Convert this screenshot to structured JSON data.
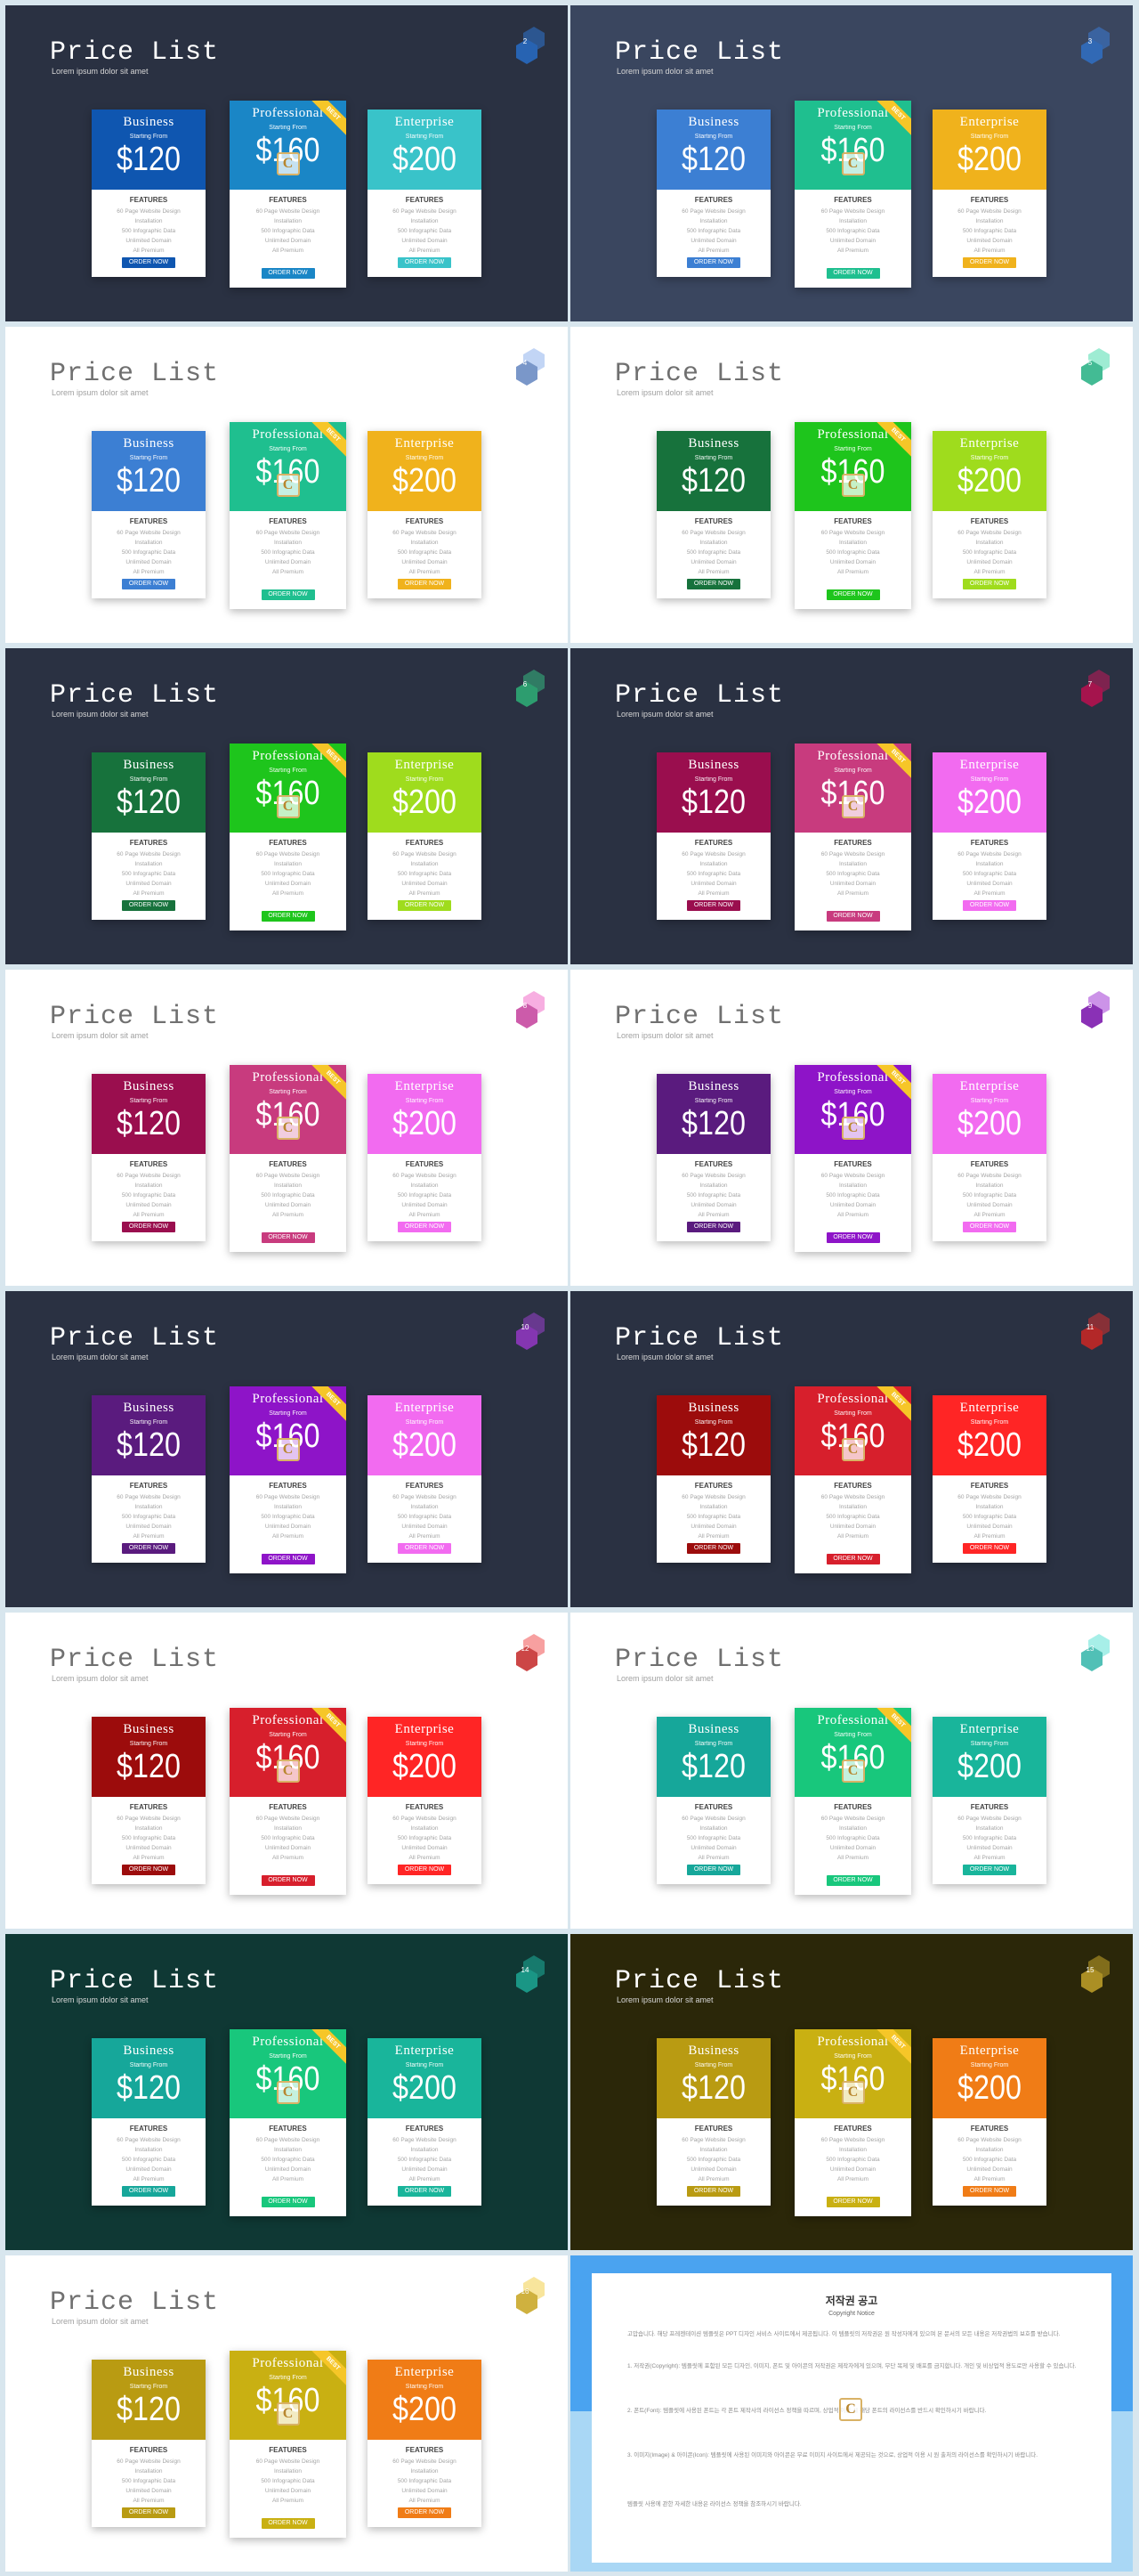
{
  "deck": {
    "title": "Price List",
    "subtitle": "Lorem ipsum dolor sit amet"
  },
  "plans": [
    {
      "name": "Business",
      "price": "$120",
      "ribbon": ""
    },
    {
      "name": "Professional",
      "price": "$160",
      "ribbon": "BEST"
    },
    {
      "name": "Enterprise",
      "price": "$200",
      "ribbon": ""
    }
  ],
  "card_labels": {
    "starting_from": "Starting From",
    "features": "FEATURES",
    "feature_lines": [
      "60 Page Website Design",
      "Installation",
      "500 Infographic Data",
      "Unlimited Domain",
      "All Premium"
    ],
    "order_button": "ORDER NOW"
  },
  "slides": [
    {
      "number": "2",
      "theme": "dark",
      "bg": "#2a3142",
      "badge": "#2e74d1",
      "colors": [
        "#0f56b0",
        "#1a86c6",
        "#39c3c9"
      ]
    },
    {
      "number": "3",
      "theme": "dark",
      "bg": "#3a465f",
      "badge": "#3a7bd5",
      "colors": [
        "#3c7fd3",
        "#1fbf8f",
        "#f0b21c"
      ]
    },
    {
      "number": "4",
      "theme": "light",
      "bg": "#ffffff",
      "badge": "#8fb2ec",
      "colors": [
        "#3c7fd3",
        "#1fbf8f",
        "#f0b21c"
      ]
    },
    {
      "number": "5",
      "theme": "light",
      "bg": "#ffffff",
      "badge": "#4fdcae",
      "colors": [
        "#17723c",
        "#1ec51c",
        "#9fdc1d"
      ]
    },
    {
      "number": "6",
      "theme": "dark",
      "bg": "#2a3142",
      "badge": "#35b982",
      "colors": [
        "#17723c",
        "#1ec51c",
        "#9fdc1d"
      ]
    },
    {
      "number": "7",
      "theme": "dark",
      "bg": "#2a3142",
      "badge": "#c2185b",
      "colors": [
        "#9a0e4e",
        "#c83b7e",
        "#f26bf0"
      ]
    },
    {
      "number": "8",
      "theme": "light",
      "bg": "#ffffff",
      "badge": "#f06bc8",
      "colors": [
        "#9a0e4e",
        "#c83b7e",
        "#f26bf0"
      ]
    },
    {
      "number": "9",
      "theme": "light",
      "bg": "#ffffff",
      "badge": "#a23ad6",
      "colors": [
        "#5a1b7e",
        "#8e14c8",
        "#f26bf0"
      ]
    },
    {
      "number": "10",
      "theme": "dark",
      "bg": "#2a3142",
      "badge": "#9b3fd0",
      "colors": [
        "#5a1b7e",
        "#8e14c8",
        "#f26bf0"
      ]
    },
    {
      "number": "11",
      "theme": "dark",
      "bg": "#2a3142",
      "badge": "#d32f2f",
      "colors": [
        "#9c0c0c",
        "#d71f2c",
        "#ff2525"
      ]
    },
    {
      "number": "12",
      "theme": "light",
      "bg": "#ffffff",
      "badge": "#f05252",
      "colors": [
        "#9c0c0c",
        "#d71f2c",
        "#ff2525"
      ]
    },
    {
      "number": "13",
      "theme": "light",
      "bg": "#ffffff",
      "badge": "#5fe2d6",
      "colors": [
        "#16a79a",
        "#18c77c",
        "#19b59b"
      ]
    },
    {
      "number": "14",
      "theme": "dark",
      "bg": "#0f3834",
      "badge": "#1fb09c",
      "colors": [
        "#16a79a",
        "#18c77c",
        "#19b59b"
      ]
    },
    {
      "number": "15",
      "theme": "dark",
      "bg": "#2b2709",
      "badge": "#c9a82a",
      "colors": [
        "#b99b12",
        "#c9b012",
        "#f07c16"
      ]
    },
    {
      "number": "16",
      "theme": "light",
      "bg": "#ffffff",
      "badge": "#f3d04a",
      "colors": [
        "#b99b12",
        "#c9b012",
        "#f07c16"
      ]
    }
  ],
  "copyright": {
    "title": "저작권 공고",
    "subtitle": "Copyright Notice",
    "paragraphs": [
      "고맙습니다. 해당 프레젠테이션 템플릿은 PPT 디자인 서비스 사이트에서 제공됩니다. 이 템플릿의 저작권은 원 작성자에게 있으며 본 문서의 모든 내용은 저작권법의 보호를 받습니다.",
      "1. 저작권(Copyright): 템플릿에 포함된 모든 디자인, 이미지, 폰트 및 아이콘의 저작권은 제작자에게 있으며, 무단 복제 및 배포를 금지합니다. 개인 및 비상업적 용도로만 사용할 수 있습니다.",
      "2. 폰트(Font): 템플릿에 사용된 폰트는 각 폰트 제작사의 라이선스 정책을 따르며, 상업적 이용 시 해당 폰트의 라이선스를 반드시 확인하시기 바랍니다.",
      "3. 이미지(Image) & 아이콘(Icon): 템플릿에 사용된 이미지와 아이콘은 무료 이미지 사이트에서 제공되는 것으로, 상업적 이용 시 원 출처의 라이선스를 확인하시기 바랍니다.",
      "템플릿 사용에 관한 자세한 내용은 라이선스 정책을 참조하시기 바랍니다."
    ]
  }
}
